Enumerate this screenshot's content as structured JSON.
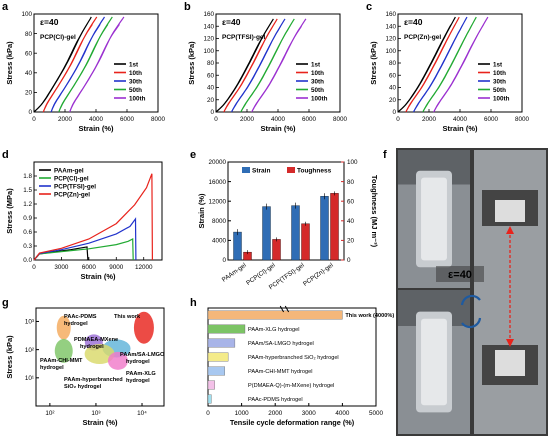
{
  "panels": {
    "a": {
      "letter": "a",
      "note": "ε=40",
      "gel": "PCP(Cl)-gel",
      "ylabel": "Stress (kPa)",
      "xlabel": "Strain (%)"
    },
    "b": {
      "letter": "b",
      "note": "ε=40",
      "gel": "PCP(TFSI)-gel",
      "ylabel": "Stress (kPa)",
      "xlabel": "Strain (%)"
    },
    "c": {
      "letter": "c",
      "note": "ε=40",
      "gel": "PCP(Zn)-gel",
      "ylabel": "Stress (kPa)",
      "xlabel": "Strain (%)"
    },
    "d": {
      "letter": "d",
      "ylabel": "Stress (MPa)",
      "xlabel": "Strain (%)"
    },
    "e": {
      "letter": "e",
      "ylabel_left": "Strain (%)",
      "ylabel_right": "Toughness (MJ m⁻³)"
    },
    "f": {
      "letter": "f",
      "note": "ε=40"
    },
    "g": {
      "letter": "g",
      "ylabel": "Stress (kPa)",
      "xlabel": "Strain (%)"
    },
    "h": {
      "letter": "h",
      "xlabel": "Tensile cycle deformation range (%)"
    }
  },
  "colors": {
    "black": "#000000",
    "red": "#e8231c",
    "blue": "#2233cc",
    "green": "#22aa33",
    "purple": "#9b30d0",
    "bar_blue": "#2f6db5",
    "bar_red": "#d42a2a"
  },
  "chart_data": [
    {
      "id": "a",
      "type": "line",
      "title": "PCP(Cl)-gel",
      "xlabel": "Strain (%)",
      "ylabel": "Stress (kPa)",
      "xlim": [
        0,
        8000
      ],
      "ylim": [
        0,
        100
      ],
      "xticks": [
        0,
        2000,
        4000,
        6000,
        8000
      ],
      "yticks": [
        0,
        20,
        40,
        60,
        80,
        100
      ],
      "legend": [
        "1st",
        "10th",
        "30th",
        "50th",
        "100th"
      ],
      "series": [
        {
          "name": "1st",
          "color": "#000000",
          "x": [
            0,
            600,
            1400,
            2200,
            3000,
            3700
          ],
          "y": [
            0,
            10,
            30,
            52,
            78,
            97
          ]
        },
        {
          "name": "10th",
          "color": "#e8231c",
          "x": [
            600,
            900,
            1700,
            2500,
            3300,
            4050
          ],
          "y": [
            0,
            10,
            30,
            52,
            78,
            97
          ]
        },
        {
          "name": "30th",
          "color": "#2233cc",
          "x": [
            1100,
            1400,
            2200,
            3000,
            3800,
            4550
          ],
          "y": [
            0,
            10,
            30,
            52,
            78,
            97
          ]
        },
        {
          "name": "50th",
          "color": "#22aa33",
          "x": [
            1600,
            1900,
            2700,
            3500,
            4300,
            5050
          ],
          "y": [
            0,
            10,
            30,
            52,
            78,
            97
          ]
        },
        {
          "name": "100th",
          "color": "#9b30d0",
          "x": [
            2300,
            2600,
            3400,
            4200,
            5000,
            5800
          ],
          "y": [
            0,
            10,
            30,
            52,
            78,
            97
          ]
        }
      ]
    },
    {
      "id": "b",
      "type": "line",
      "title": "PCP(TFSI)-gel",
      "xlabel": "Strain (%)",
      "ylabel": "Stress (kPa)",
      "xlim": [
        0,
        8000
      ],
      "ylim": [
        0,
        160
      ],
      "xticks": [
        0,
        2000,
        4000,
        6000,
        8000
      ],
      "yticks": [
        0,
        20,
        40,
        60,
        80,
        100,
        120,
        140,
        160
      ],
      "legend": [
        "1st",
        "10th",
        "30th",
        "50th",
        "100th"
      ],
      "series": [
        {
          "name": "1st",
          "color": "#000000",
          "x": [
            0,
            600,
            1400,
            2200,
            3000,
            3700
          ],
          "y": [
            0,
            15,
            45,
            82,
            122,
            152
          ]
        },
        {
          "name": "10th",
          "color": "#e8231c",
          "x": [
            500,
            850,
            1650,
            2450,
            3250,
            3950
          ],
          "y": [
            0,
            15,
            45,
            82,
            122,
            152
          ]
        },
        {
          "name": "30th",
          "color": "#2233cc",
          "x": [
            1000,
            1350,
            2150,
            2950,
            3750,
            4450
          ],
          "y": [
            0,
            15,
            45,
            82,
            122,
            152
          ]
        },
        {
          "name": "50th",
          "color": "#22aa33",
          "x": [
            1600,
            1950,
            2750,
            3550,
            4350,
            5050
          ],
          "y": [
            0,
            15,
            45,
            82,
            122,
            152
          ]
        },
        {
          "name": "100th",
          "color": "#9b30d0",
          "x": [
            2300,
            2650,
            3450,
            4250,
            5050,
            5800
          ],
          "y": [
            0,
            15,
            45,
            82,
            122,
            152
          ]
        }
      ]
    },
    {
      "id": "c",
      "type": "line",
      "title": "PCP(Zn)-gel",
      "xlabel": "Strain (%)",
      "ylabel": "Stress (kPa)",
      "xlim": [
        0,
        8000
      ],
      "ylim": [
        0,
        160
      ],
      "xticks": [
        0,
        2000,
        4000,
        6000,
        8000
      ],
      "yticks": [
        0,
        20,
        40,
        60,
        80,
        100,
        120,
        140,
        160
      ],
      "legend": [
        "1st",
        "10th",
        "30th",
        "50th",
        "100th"
      ],
      "series": [
        {
          "name": "1st",
          "color": "#000000",
          "x": [
            0,
            600,
            1400,
            2200,
            3000,
            3700
          ],
          "y": [
            0,
            15,
            45,
            82,
            122,
            155
          ]
        },
        {
          "name": "10th",
          "color": "#e8231c",
          "x": [
            500,
            850,
            1650,
            2450,
            3250,
            3950
          ],
          "y": [
            0,
            15,
            45,
            82,
            122,
            155
          ]
        },
        {
          "name": "30th",
          "color": "#2233cc",
          "x": [
            1000,
            1350,
            2150,
            2950,
            3750,
            4450
          ],
          "y": [
            0,
            15,
            45,
            82,
            122,
            155
          ]
        },
        {
          "name": "50th",
          "color": "#22aa33",
          "x": [
            1600,
            1950,
            2750,
            3550,
            4350,
            5050
          ],
          "y": [
            0,
            15,
            45,
            82,
            122,
            155
          ]
        },
        {
          "name": "100th",
          "color": "#9b30d0",
          "x": [
            2300,
            2650,
            3450,
            4250,
            5050,
            5800
          ],
          "y": [
            0,
            15,
            45,
            82,
            122,
            155
          ]
        }
      ]
    },
    {
      "id": "d",
      "type": "line",
      "xlabel": "Strain (%)",
      "ylabel": "Stress (MPa)",
      "xlim": [
        0,
        14000
      ],
      "ylim": [
        0,
        2.1
      ],
      "xticks": [
        0,
        3000,
        6000,
        9000,
        12000
      ],
      "yticks": [
        0.0,
        0.3,
        0.6,
        0.9,
        1.2,
        1.5,
        1.8
      ],
      "legend": [
        "PAAm-gel",
        "PCP(Cl)-gel",
        "PCP(TFSI)-gel",
        "PCP(Zn)-gel"
      ],
      "series": [
        {
          "name": "PAAm-gel",
          "color": "#000000",
          "x": [
            0,
            600,
            2000,
            4000,
            5800,
            5900
          ],
          "y": [
            0,
            0.13,
            0.17,
            0.22,
            0.28,
            0.0
          ]
        },
        {
          "name": "PCP(Cl)-gel",
          "color": "#22aa33",
          "x": [
            0,
            600,
            3000,
            6000,
            9000,
            10300,
            10800,
            10850
          ],
          "y": [
            0,
            0.13,
            0.18,
            0.24,
            0.33,
            0.4,
            0.45,
            0.0
          ]
        },
        {
          "name": "PCP(TFSI)-gel",
          "color": "#2233cc",
          "x": [
            0,
            600,
            3000,
            6000,
            9000,
            10500,
            11100,
            11150
          ],
          "y": [
            0,
            0.14,
            0.22,
            0.36,
            0.56,
            0.72,
            0.88,
            0.0
          ]
        },
        {
          "name": "PCP(Zn)-gel",
          "color": "#e8231c",
          "x": [
            0,
            600,
            3000,
            6000,
            9000,
            11000,
            12300,
            12900,
            12950
          ],
          "y": [
            0,
            0.15,
            0.25,
            0.45,
            0.78,
            1.18,
            1.55,
            1.85,
            0.0
          ]
        }
      ]
    },
    {
      "id": "e",
      "type": "bar",
      "categories": [
        "PAAm-gel",
        "PCP(Cl)-gel",
        "PCP(TFSI)-gel",
        "PCP(Zn)-gel"
      ],
      "ylabel": "Strain (%)",
      "y2label": "Toughness (MJ m⁻³)",
      "ylim": [
        0,
        20000
      ],
      "y2lim": [
        0,
        100
      ],
      "yticks": [
        0,
        4000,
        8000,
        12000,
        16000,
        20000
      ],
      "y2ticks": [
        0,
        20,
        40,
        60,
        80,
        100
      ],
      "legend": [
        "Strain",
        "Toughness"
      ],
      "series": [
        {
          "name": "Strain",
          "color": "#2f6db5",
          "axis": "left",
          "values": [
            5700,
            10900,
            11100,
            13000
          ]
        },
        {
          "name": "Toughness",
          "color": "#d42a2a",
          "axis": "right",
          "values": [
            8,
            21,
            37,
            68
          ]
        }
      ]
    },
    {
      "id": "g",
      "type": "scatter",
      "xlabel": "Strain (%)",
      "ylabel": "Stress (kPa)",
      "xscale": "log",
      "yscale": "log",
      "xlim": [
        50,
        30000
      ],
      "ylim": [
        1,
        3000
      ],
      "xticklabels": [
        "10²",
        "10³",
        "10⁴"
      ],
      "yticklabels": [
        "10¹",
        "10²",
        "10³"
      ],
      "points": [
        {
          "label": "PAAc-PDMS hydrogel",
          "color": "#f4a95b",
          "x": 200,
          "y": 600
        },
        {
          "label": "This work",
          "color": "#e8231c",
          "x": 11000,
          "y": 600
        },
        {
          "label": "PDMAEA-MXene hydrogel",
          "color": "#9b6fd6",
          "x": 900,
          "y": 180
        },
        {
          "label": "PAAm/SA-LMGO hydrogel",
          "color": "#5fb3d9",
          "x": 2800,
          "y": 110
        },
        {
          "label": "PAAm-CHI-MMT hydrogel",
          "color": "#7cc465",
          "x": 200,
          "y": 90
        },
        {
          "label": "PAAm-hyperbranched SiO₂ hydrogel",
          "color": "#d9d96a",
          "x": 1200,
          "y": 70
        },
        {
          "label": "PAAm-XLG hydrogel",
          "color": "#f07ac9",
          "x": 3000,
          "y": 40
        }
      ]
    },
    {
      "id": "h",
      "type": "bar",
      "orientation": "horizontal",
      "xlabel": "Tensile cycle deformation range (%)",
      "xlim": [
        0,
        5000
      ],
      "xticks": [
        0,
        1000,
        2000,
        3000,
        4000,
        5000
      ],
      "categories": [
        "This work (4000%)",
        "PAAm-XLG hydrogel",
        "PAAm/SA-LMGO hydrogel",
        "PAAm-hyperbranched SiO₂ hydrogel",
        "PAAm-CHI-MMT hydrogel",
        "P(DMAEA-Q)-(m-MXene) hydrogel",
        "PAAc-PDMS hydrogel"
      ],
      "values": [
        4000,
        1100,
        800,
        600,
        500,
        200,
        100
      ],
      "colors": [
        "#f4b77a",
        "#7cc465",
        "#a8b4e8",
        "#f4eb8a",
        "#a8c8f0",
        "#f3c1e8",
        "#9fe0f0"
      ]
    }
  ]
}
